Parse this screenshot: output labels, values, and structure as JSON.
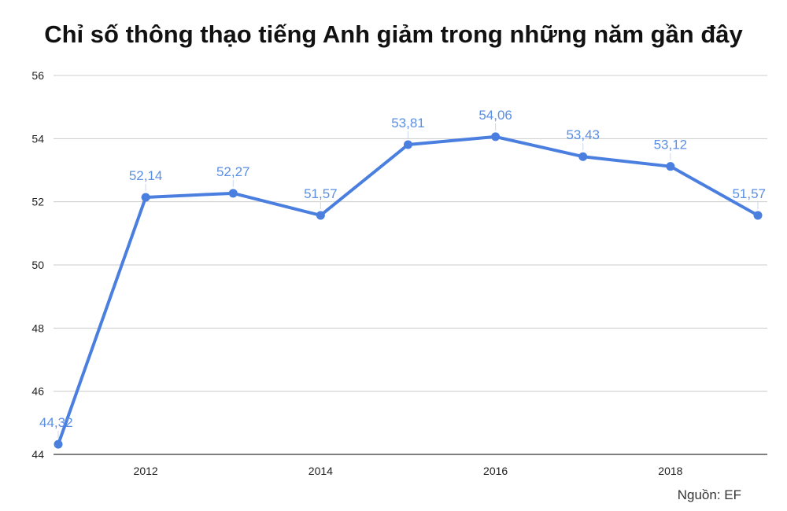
{
  "chart_data": {
    "type": "line",
    "title": "Chỉ số thông thạo tiếng Anh giảm trong những năm gần đây",
    "xlabel": "",
    "ylabel": "",
    "x": [
      2011,
      2012,
      2013,
      2014,
      2015,
      2016,
      2017,
      2018,
      2019
    ],
    "series": [
      {
        "values": [
          44.32,
          52.14,
          52.27,
          51.57,
          53.81,
          54.06,
          53.43,
          53.12,
          51.57
        ],
        "labels": [
          "44,32",
          "52,14",
          "52,27",
          "51,57",
          "53,81",
          "54,06",
          "53,43",
          "53,12",
          "51,57"
        ]
      }
    ],
    "xticks": [
      2012,
      2014,
      2016,
      2018
    ],
    "xtick_labels": [
      "2012",
      "2014",
      "2016",
      "2018"
    ],
    "xlim": [
      2011,
      2019
    ],
    "yticks": [
      44,
      46,
      48,
      50,
      52,
      54,
      56
    ],
    "ytick_labels": [
      "44",
      "46",
      "48",
      "50",
      "52",
      "54",
      "56"
    ],
    "ylim": [
      44,
      56
    ],
    "grid": true,
    "colors": {
      "line": "#4a7fe0",
      "label": "#5b8fe4",
      "grid": "#cccccc",
      "axis_text": "#222222"
    }
  },
  "source": "Nguồn: EF"
}
